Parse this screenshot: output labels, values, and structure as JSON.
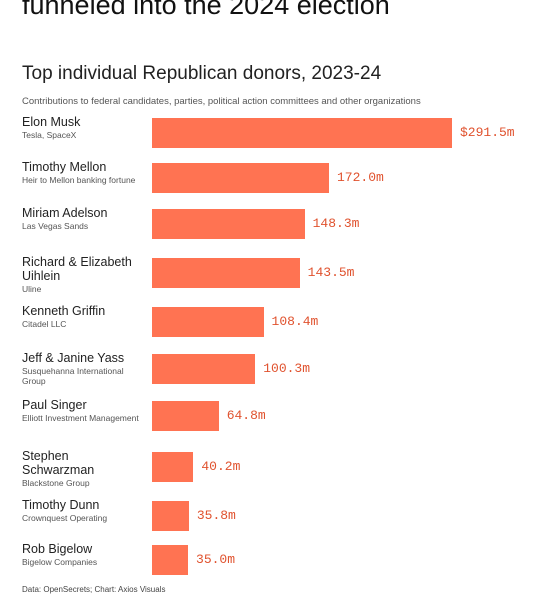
{
  "header": {
    "headline": "funneled into the 2024 election"
  },
  "chart_data": {
    "type": "bar",
    "orientation": "horizontal",
    "title": "Top individual Republican donors, 2023-24",
    "subtitle": "Contributions to federal candidates, parties, political action committees and other organizations",
    "categories": [
      "Elon Musk",
      "Timothy Mellon",
      "Miriam Adelson",
      "Richard & Elizabeth Uihlein",
      "Kenneth Griffin",
      "Jeff & Janine Yass",
      "Paul Singer",
      "Stephen Schwarzman",
      "Timothy Dunn",
      "Rob Bigelow"
    ],
    "descriptions": [
      "Tesla, SpaceX",
      "Heir to Mellon banking fortune",
      "Las Vegas Sands",
      "Uline",
      "Citadel LLC",
      "Susquehanna International Group",
      "Elliott Investment Management",
      "Blackstone Group",
      "Crownquest Operating",
      "Bigelow Companies"
    ],
    "values": [
      291.5,
      172.0,
      148.3,
      143.5,
      108.4,
      100.3,
      64.8,
      40.2,
      35.8,
      35.0
    ],
    "value_labels": [
      "$291.5m",
      "172.0m",
      "148.3m",
      "143.5m",
      "108.4m",
      "100.3m",
      "64.8m",
      "40.2m",
      "35.8m",
      "35.0m"
    ],
    "color": "#ff7352",
    "source": "Data: OpenSecrets; Chart: Axios Visuals"
  }
}
